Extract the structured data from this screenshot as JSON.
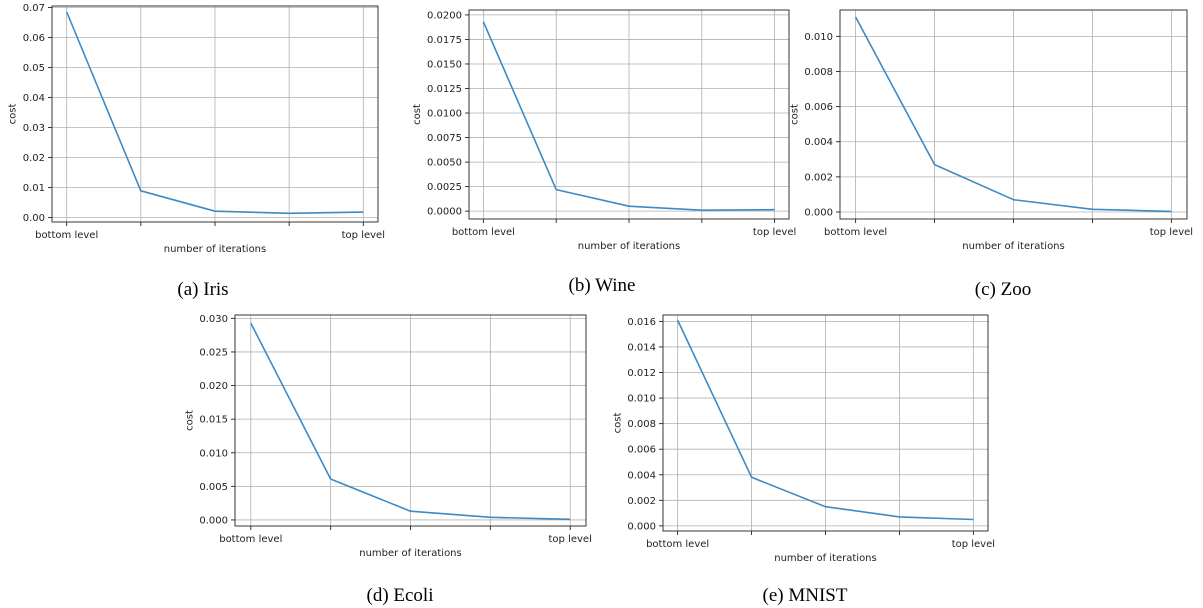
{
  "chart_data": [
    {
      "type": "line",
      "caption": "(a) Iris",
      "xlabel": "number of iterations",
      "ylabel": "cost",
      "x_tick_labels": [
        "bottom level",
        "",
        "",
        "",
        "top level"
      ],
      "y_ticks": [
        0.0,
        0.01,
        0.02,
        0.03,
        0.04,
        0.05,
        0.06,
        0.07
      ],
      "y_tick_labels": [
        "0.00",
        "0.01",
        "0.02",
        "0.03",
        "0.04",
        "0.05",
        "0.06",
        "0.07"
      ],
      "ylim": [
        -0.0015,
        0.0705
      ],
      "values": [
        0.0685,
        0.0089,
        0.0021,
        0.0014,
        0.0018
      ],
      "grid": true,
      "color": "#3d8ac4"
    },
    {
      "type": "line",
      "caption": "(b) Wine",
      "xlabel": "number of iterations",
      "ylabel": "cost",
      "x_tick_labels": [
        "bottom level",
        "",
        "",
        "",
        "top level"
      ],
      "y_ticks": [
        0.0,
        0.0025,
        0.005,
        0.0075,
        0.01,
        0.0125,
        0.015,
        0.0175,
        0.02
      ],
      "y_tick_labels": [
        "0.0000",
        "0.0025",
        "0.0050",
        "0.0075",
        "0.0100",
        "0.0125",
        "0.0150",
        "0.0175",
        "0.0200"
      ],
      "ylim": [
        -0.0008,
        0.0205
      ],
      "values": [
        0.0193,
        0.0022,
        0.0005,
        0.0001,
        0.00015
      ],
      "grid": true,
      "color": "#3d8ac4"
    },
    {
      "type": "line",
      "caption": "(c) Zoo",
      "xlabel": "number of iterations",
      "ylabel": "cost",
      "x_tick_labels": [
        "bottom level",
        "",
        "",
        "",
        "top level"
      ],
      "y_ticks": [
        0.0,
        0.002,
        0.004,
        0.006,
        0.008,
        0.01
      ],
      "y_tick_labels": [
        "0.000",
        "0.002",
        "0.004",
        "0.006",
        "0.008",
        "0.010"
      ],
      "ylim": [
        -0.0004,
        0.0115
      ],
      "values": [
        0.0111,
        0.0027,
        0.0007,
        0.00015,
        3e-05
      ],
      "grid": true,
      "color": "#3d8ac4"
    },
    {
      "type": "line",
      "caption": "(d) Ecoli",
      "xlabel": "number of iterations",
      "ylabel": "cost",
      "x_tick_labels": [
        "bottom level",
        "",
        "",
        "",
        "top level"
      ],
      "y_ticks": [
        0.0,
        0.005,
        0.01,
        0.015,
        0.02,
        0.025,
        0.03
      ],
      "y_tick_labels": [
        "0.000",
        "0.005",
        "0.010",
        "0.015",
        "0.020",
        "0.025",
        "0.030"
      ],
      "ylim": [
        -0.0009,
        0.0305
      ],
      "values": [
        0.0293,
        0.0061,
        0.0013,
        0.0004,
        0.0001
      ],
      "grid": true,
      "color": "#3d8ac4"
    },
    {
      "type": "line",
      "caption": "(e) MNIST",
      "xlabel": "number of iterations",
      "ylabel": "cost",
      "x_tick_labels": [
        "bottom level",
        "",
        "",
        "",
        "top level"
      ],
      "y_ticks": [
        0.0,
        0.002,
        0.004,
        0.006,
        0.008,
        0.01,
        0.012,
        0.014,
        0.016
      ],
      "y_tick_labels": [
        "0.000",
        "0.002",
        "0.004",
        "0.006",
        "0.008",
        "0.010",
        "0.012",
        "0.014",
        "0.016"
      ],
      "ylim": [
        -0.0004,
        0.0165
      ],
      "values": [
        0.0161,
        0.0038,
        0.0015,
        0.0007,
        0.0005
      ],
      "grid": true,
      "color": "#3d8ac4"
    }
  ]
}
